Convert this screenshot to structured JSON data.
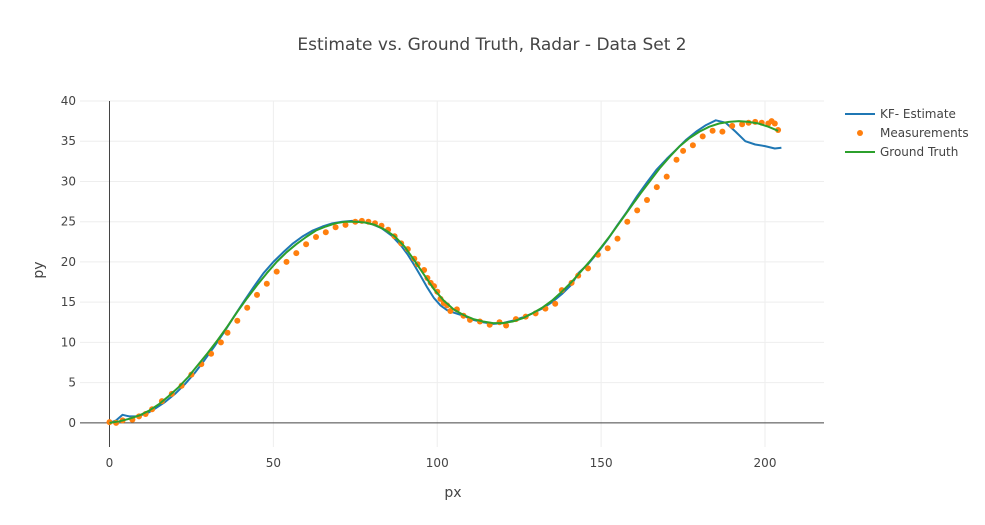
{
  "chart_data": {
    "type": "line",
    "title": "Estimate vs. Ground Truth, Radar - Data Set 2",
    "xlabel": "px",
    "ylabel": "py",
    "xlim": [
      -9,
      218
    ],
    "ylim": [
      -3,
      40
    ],
    "xticks": [
      0,
      50,
      100,
      150,
      200
    ],
    "yticks": [
      0,
      5,
      10,
      15,
      20,
      25,
      30,
      35,
      40
    ],
    "grid": true,
    "legend_position": "top-right",
    "series": [
      {
        "name": "KF- Estimate",
        "mode": "line",
        "color": "#1f77b4",
        "x": [
          0,
          2,
          4,
          6,
          8,
          10,
          12,
          14,
          17,
          20,
          23,
          26,
          29,
          32,
          35,
          38,
          41,
          44,
          47,
          50,
          53,
          56,
          59,
          62,
          65,
          68,
          71,
          74,
          77,
          80,
          83,
          86,
          89,
          91,
          93,
          95,
          97,
          99,
          101,
          103,
          105,
          108,
          111,
          114,
          117,
          120,
          123,
          126,
          129,
          132,
          135,
          138,
          141,
          143,
          146,
          149,
          152,
          155,
          158,
          161,
          164,
          167,
          170,
          173,
          176,
          179,
          182,
          185,
          188,
          191,
          194,
          197,
          200,
          203,
          205
        ],
        "y": [
          0,
          0.3,
          1.0,
          0.8,
          0.8,
          1.0,
          1.3,
          1.8,
          2.6,
          3.6,
          4.8,
          6.2,
          7.8,
          9.5,
          11.3,
          13.2,
          15.1,
          16.9,
          18.6,
          20.0,
          21.2,
          22.3,
          23.2,
          23.9,
          24.4,
          24.8,
          25.0,
          25.1,
          25.0,
          24.7,
          24.2,
          23.3,
          22.0,
          20.9,
          19.6,
          18.2,
          16.8,
          15.5,
          14.6,
          14.0,
          13.7,
          13.3,
          12.8,
          12.5,
          12.3,
          12.4,
          12.7,
          13.1,
          13.6,
          14.2,
          15.0,
          16.0,
          17.2,
          18.6,
          19.7,
          21.2,
          22.8,
          24.6,
          26.3,
          28.2,
          29.9,
          31.5,
          32.8,
          34.0,
          35.2,
          36.2,
          37.0,
          37.6,
          37.3,
          36.2,
          35.0,
          34.6,
          34.4,
          34.1,
          34.2
        ]
      },
      {
        "name": "Measurements",
        "mode": "markers",
        "color": "#ff7f0e",
        "x": [
          0,
          2,
          4,
          7,
          9,
          11,
          13,
          16,
          19,
          22,
          25,
          28,
          31,
          34,
          36,
          39,
          42,
          45,
          48,
          51,
          54,
          57,
          60,
          63,
          66,
          69,
          72,
          75,
          77,
          79,
          81,
          83,
          85,
          87,
          89,
          91,
          93,
          94,
          96,
          97,
          98,
          99,
          100,
          101,
          102,
          103,
          104,
          106,
          108,
          110,
          113,
          116,
          119,
          121,
          124,
          127,
          130,
          133,
          136,
          138,
          141,
          143,
          146,
          149,
          152,
          155,
          158,
          161,
          164,
          167,
          170,
          173,
          175,
          178,
          181,
          184,
          187,
          190,
          193,
          195,
          197,
          199,
          201,
          202,
          203,
          204
        ],
        "y": [
          0.1,
          0.0,
          0.3,
          0.4,
          0.8,
          1.1,
          1.7,
          2.7,
          3.6,
          4.6,
          6.0,
          7.3,
          8.6,
          10.0,
          11.2,
          12.7,
          14.3,
          15.9,
          17.3,
          18.8,
          20.0,
          21.1,
          22.2,
          23.1,
          23.7,
          24.3,
          24.6,
          25.0,
          25.1,
          25.0,
          24.8,
          24.5,
          24.0,
          23.2,
          22.3,
          21.6,
          20.4,
          19.7,
          19.0,
          18.0,
          17.4,
          17.0,
          16.3,
          15.4,
          14.9,
          14.6,
          13.9,
          14.1,
          13.3,
          12.8,
          12.6,
          12.2,
          12.5,
          12.1,
          12.9,
          13.2,
          13.6,
          14.2,
          14.8,
          16.5,
          17.4,
          18.3,
          19.2,
          20.9,
          21.7,
          22.9,
          25.0,
          26.4,
          27.7,
          29.3,
          30.6,
          32.7,
          33.8,
          34.5,
          35.6,
          36.3,
          36.2,
          36.9,
          37.1,
          37.3,
          37.4,
          37.3,
          37.2,
          37.5,
          37.2,
          36.4
        ]
      },
      {
        "name": "Ground Truth",
        "mode": "line",
        "color": "#2ca02c",
        "x": [
          0,
          3,
          6,
          9,
          12,
          15,
          18,
          21,
          24,
          27,
          30,
          33,
          36,
          39,
          42,
          45,
          48,
          51,
          54,
          57,
          60,
          63,
          66,
          69,
          72,
          75,
          78,
          81,
          84,
          87,
          90,
          93,
          96,
          99,
          102,
          105,
          108,
          111,
          114,
          117,
          120,
          123,
          126,
          129,
          132,
          135,
          138,
          141,
          144,
          147,
          150,
          153,
          156,
          159,
          162,
          165,
          168,
          171,
          174,
          177,
          180,
          183,
          186,
          189,
          192,
          195,
          198,
          201,
          204
        ],
        "y": [
          0,
          0.2,
          0.5,
          0.9,
          1.5,
          2.3,
          3.3,
          4.4,
          5.7,
          7.2,
          8.7,
          10.3,
          12.0,
          13.8,
          15.5,
          17.1,
          18.6,
          20.0,
          21.2,
          22.2,
          23.1,
          23.9,
          24.4,
          24.8,
          25.0,
          25.0,
          24.9,
          24.6,
          24.0,
          23.2,
          21.9,
          20.2,
          18.4,
          16.6,
          15.2,
          14.1,
          13.4,
          12.9,
          12.6,
          12.4,
          12.4,
          12.6,
          13.0,
          13.6,
          14.3,
          15.2,
          16.3,
          17.5,
          18.9,
          20.3,
          21.8,
          23.4,
          25.1,
          26.8,
          28.5,
          30.1,
          31.7,
          33.1,
          34.4,
          35.4,
          36.2,
          36.8,
          37.2,
          37.4,
          37.5,
          37.4,
          37.2,
          36.8,
          36.3
        ]
      }
    ]
  }
}
